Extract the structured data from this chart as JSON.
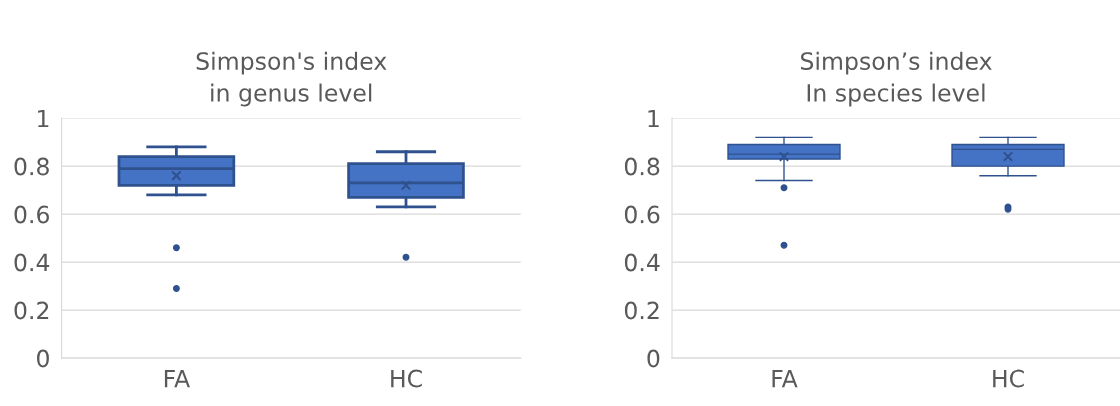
{
  "chart_data": [
    {
      "type": "box",
      "title": "Simpson's index\nin genus level",
      "categories": [
        "FA",
        "HC"
      ],
      "color": "#4472c4",
      "ylim": [
        0,
        1
      ],
      "yticks": [
        0,
        0.2,
        0.4,
        0.6,
        0.8,
        1
      ],
      "grid": "y",
      "boxes": [
        {
          "low": 0.68,
          "q1": 0.72,
          "median": 0.79,
          "q3": 0.84,
          "high": 0.88,
          "mean": 0.76,
          "outliers": [
            0.46,
            0.29
          ]
        },
        {
          "low": 0.63,
          "q1": 0.67,
          "median": 0.73,
          "q3": 0.81,
          "high": 0.86,
          "mean": 0.72,
          "outliers": [
            0.42
          ]
        }
      ]
    },
    {
      "type": "box",
      "title": "Simpson’s index\nIn species level",
      "categories": [
        "FA",
        "HC"
      ],
      "color": "#4472c4",
      "ylim": [
        0,
        1
      ],
      "yticks": [
        0,
        0.2,
        0.4,
        0.6,
        0.8,
        1
      ],
      "grid": "y",
      "boxes": [
        {
          "low": 0.74,
          "q1": 0.83,
          "median": 0.85,
          "q3": 0.89,
          "high": 0.92,
          "mean": 0.84,
          "outliers": [
            0.71,
            0.47
          ]
        },
        {
          "low": 0.76,
          "q1": 0.8,
          "median": 0.87,
          "q3": 0.89,
          "high": 0.92,
          "mean": 0.84,
          "outliers": [
            0.63,
            0.62
          ]
        }
      ]
    }
  ]
}
